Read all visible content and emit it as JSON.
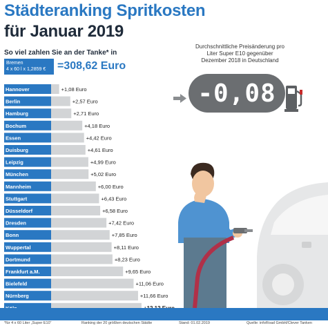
{
  "header": {
    "title_line1": "Städteranking Spritkosten",
    "title_line2": "für Januar 2019",
    "subtitle": "So viel zahlen Sie an der Tanke* in"
  },
  "base": {
    "city": "Bremen",
    "formula": "4 x 60 l x 1,2859 €",
    "value": "=308,62 Euro"
  },
  "annotation": {
    "text": "Durchschnittliche Preisänderung pro Liter Super E10 gegenüber Dezember 2018 in Deutschland",
    "value": "-0,08",
    "icons": [
      "arrow-right-icon",
      "fuel-pump-icon"
    ]
  },
  "chart_data": {
    "type": "bar",
    "orientation": "horizontal",
    "unit": "Euro",
    "categories": [
      "Hannover",
      "Berlin",
      "Hamburg",
      "Bochum",
      "Essen",
      "Duisburg",
      "Leipzig",
      "München",
      "Mannheim",
      "Stuttgart",
      "Düsseldorf",
      "Dresden",
      "Bonn",
      "Wuppertal",
      "Dortmund",
      "Frankfurt a.M.",
      "Bielefeld",
      "Nürnberg",
      "Köln"
    ],
    "values": [
      1.08,
      2.57,
      2.71,
      4.18,
      4.42,
      4.61,
      4.99,
      5.02,
      6.0,
      6.43,
      6.58,
      7.42,
      7.85,
      8.11,
      8.23,
      9.65,
      11.06,
      11.66,
      12.12
    ],
    "labels": [
      "+1,08 Euro",
      "+2,57 Euro",
      "+2,71 Euro",
      "+4,18 Euro",
      "+4,42 Euro",
      "+4,61 Euro",
      "+4,99 Euro",
      "+5,02 Euro",
      "+6,00 Euro",
      "+6,43 Euro",
      "+6,58 Euro",
      "+7,42 Euro",
      "+7,85 Euro",
      "+8,11 Euro",
      "+8,23 Euro",
      "+9,65 Euro",
      "+11,06 Euro",
      "+11,66 Euro",
      "+12,12 Euro"
    ],
    "highlight_last": true,
    "colors": {
      "label_bg": "#2a78c2",
      "bar": "#d2d4d6",
      "label_text": "#ffffff",
      "value_text": "#222222"
    }
  },
  "footer": {
    "note": "*für 4 x 60 Liter „Super E10“",
    "ranking": "Ranking der 20 größten deutschen Städte",
    "date": "Stand: 01.02.2019",
    "source": "Quelle: infoRoad GmbH/Clever Tanken"
  },
  "colors": {
    "brand": "#2a78c2",
    "dark": "#1f2b3a",
    "pill": "#6b6e71"
  }
}
